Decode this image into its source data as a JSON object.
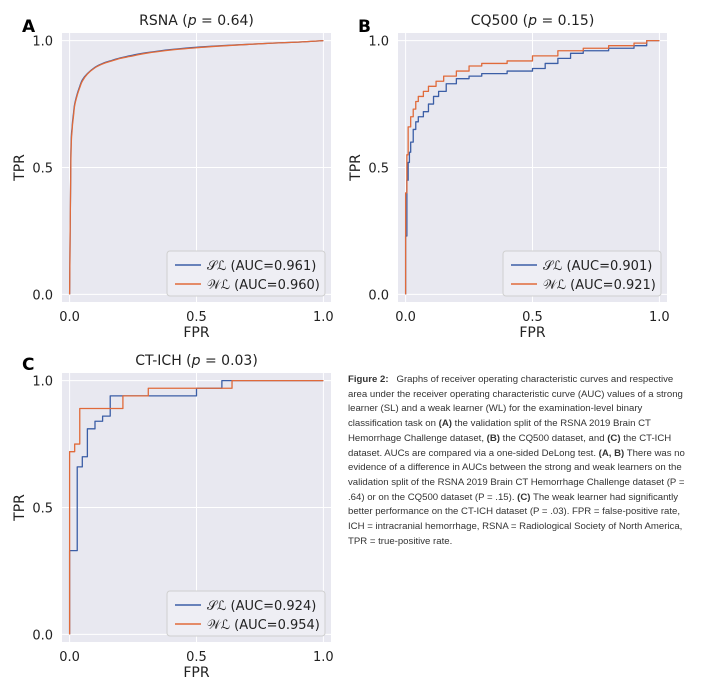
{
  "colors": {
    "sl": "#3b5ea6",
    "wl": "#e06a3a",
    "plot_bg": "#e8e8f0",
    "grid": "#ffffff",
    "text": "#222222"
  },
  "chart_data": [
    {
      "type": "line",
      "panel_letter": "A",
      "title": "RSNA (p = 0.64)",
      "title_name": "RSNA",
      "p_value": "0.64",
      "xlabel": "FPR",
      "ylabel": "TPR",
      "xlim": [
        -0.03,
        1.03
      ],
      "ylim": [
        -0.03,
        1.03
      ],
      "xticks": [
        0.0,
        0.5,
        1.0
      ],
      "xtick_labels": [
        "0.0",
        "0.5",
        "1.0"
      ],
      "yticks": [
        0.0,
        0.5,
        1.0
      ],
      "ytick_labels": [
        "0.0",
        "0.5",
        "1.0"
      ],
      "legend_position": "lower-right",
      "series": [
        {
          "name": "SL",
          "legend_label": "𝒮ℒ (AUC=0.961)",
          "auc": 0.961,
          "style": "smooth",
          "x": [
            0.0,
            0.005,
            0.01,
            0.015,
            0.02,
            0.03,
            0.04,
            0.05,
            0.07,
            0.1,
            0.13,
            0.16,
            0.2,
            0.25,
            0.3,
            0.4,
            0.5,
            0.6,
            0.7,
            0.8,
            0.9,
            0.95,
            1.0
          ],
          "y": [
            0.0,
            0.55,
            0.66,
            0.71,
            0.75,
            0.79,
            0.82,
            0.845,
            0.87,
            0.895,
            0.91,
            0.92,
            0.932,
            0.943,
            0.952,
            0.965,
            0.974,
            0.98,
            0.985,
            0.99,
            0.994,
            0.997,
            1.0
          ]
        },
        {
          "name": "WL",
          "legend_label": "𝒲ℒ (AUC=0.960)",
          "auc": 0.96,
          "style": "smooth",
          "x": [
            0.0,
            0.005,
            0.01,
            0.015,
            0.02,
            0.03,
            0.04,
            0.05,
            0.07,
            0.1,
            0.13,
            0.16,
            0.2,
            0.25,
            0.3,
            0.4,
            0.5,
            0.6,
            0.7,
            0.8,
            0.9,
            0.95,
            1.0
          ],
          "y": [
            0.0,
            0.53,
            0.65,
            0.7,
            0.745,
            0.785,
            0.815,
            0.84,
            0.868,
            0.893,
            0.908,
            0.918,
            0.93,
            0.94,
            0.95,
            0.963,
            0.972,
            0.979,
            0.985,
            0.99,
            0.994,
            0.997,
            1.0
          ]
        }
      ]
    },
    {
      "type": "line",
      "panel_letter": "B",
      "title": "CQ500 (p = 0.15)",
      "title_name": "CQ500",
      "p_value": "0.15",
      "xlabel": "FPR",
      "ylabel": "TPR",
      "xlim": [
        -0.03,
        1.03
      ],
      "ylim": [
        -0.03,
        1.03
      ],
      "xticks": [
        0.0,
        0.5,
        1.0
      ],
      "xtick_labels": [
        "0.0",
        "0.5",
        "1.0"
      ],
      "yticks": [
        0.0,
        0.5,
        1.0
      ],
      "ytick_labels": [
        "0.0",
        "0.5",
        "1.0"
      ],
      "legend_position": "lower-right",
      "series": [
        {
          "name": "SL",
          "legend_label": "𝒮ℒ (AUC=0.901)",
          "auc": 0.901,
          "style": "step",
          "x": [
            0.0,
            0.0,
            0.005,
            0.005,
            0.01,
            0.01,
            0.015,
            0.015,
            0.02,
            0.02,
            0.03,
            0.03,
            0.04,
            0.04,
            0.05,
            0.05,
            0.07,
            0.07,
            0.09,
            0.09,
            0.11,
            0.11,
            0.13,
            0.13,
            0.16,
            0.16,
            0.2,
            0.2,
            0.25,
            0.25,
            0.3,
            0.3,
            0.4,
            0.4,
            0.5,
            0.5,
            0.55,
            0.55,
            0.6,
            0.6,
            0.65,
            0.65,
            0.7,
            0.7,
            0.8,
            0.8,
            0.9,
            0.9,
            0.95,
            0.95,
            1.0
          ],
          "y": [
            0.0,
            0.23,
            0.23,
            0.45,
            0.45,
            0.52,
            0.52,
            0.56,
            0.56,
            0.6,
            0.6,
            0.65,
            0.65,
            0.68,
            0.68,
            0.7,
            0.7,
            0.72,
            0.72,
            0.75,
            0.75,
            0.78,
            0.78,
            0.8,
            0.8,
            0.83,
            0.83,
            0.85,
            0.85,
            0.86,
            0.86,
            0.87,
            0.87,
            0.88,
            0.88,
            0.89,
            0.89,
            0.91,
            0.91,
            0.93,
            0.93,
            0.95,
            0.95,
            0.96,
            0.96,
            0.97,
            0.97,
            0.98,
            0.98,
            1.0,
            1.0
          ]
        },
        {
          "name": "WL",
          "legend_label": "𝒲ℒ (AUC=0.921)",
          "auc": 0.921,
          "style": "step",
          "x": [
            0.0,
            0.0,
            0.005,
            0.005,
            0.01,
            0.01,
            0.02,
            0.02,
            0.03,
            0.03,
            0.04,
            0.04,
            0.05,
            0.05,
            0.07,
            0.07,
            0.09,
            0.09,
            0.12,
            0.12,
            0.15,
            0.15,
            0.2,
            0.2,
            0.25,
            0.25,
            0.3,
            0.3,
            0.4,
            0.4,
            0.5,
            0.5,
            0.6,
            0.6,
            0.7,
            0.7,
            0.8,
            0.8,
            0.9,
            0.9,
            0.95,
            0.95,
            1.0
          ],
          "y": [
            0.0,
            0.4,
            0.4,
            0.55,
            0.55,
            0.66,
            0.66,
            0.7,
            0.7,
            0.73,
            0.73,
            0.76,
            0.76,
            0.78,
            0.78,
            0.8,
            0.8,
            0.82,
            0.82,
            0.84,
            0.84,
            0.86,
            0.86,
            0.88,
            0.88,
            0.9,
            0.9,
            0.91,
            0.91,
            0.92,
            0.92,
            0.94,
            0.94,
            0.96,
            0.96,
            0.97,
            0.97,
            0.98,
            0.98,
            0.99,
            0.99,
            1.0,
            1.0
          ]
        }
      ]
    },
    {
      "type": "line",
      "panel_letter": "C",
      "title": "CT-ICH (p = 0.03)",
      "title_name": "CT-ICH",
      "p_value": "0.03",
      "xlabel": "FPR",
      "ylabel": "TPR",
      "xlim": [
        -0.03,
        1.03
      ],
      "ylim": [
        -0.03,
        1.03
      ],
      "xticks": [
        0.0,
        0.5,
        1.0
      ],
      "xtick_labels": [
        "0.0",
        "0.5",
        "1.0"
      ],
      "yticks": [
        0.0,
        0.5,
        1.0
      ],
      "ytick_labels": [
        "0.0",
        "0.5",
        "1.0"
      ],
      "legend_position": "lower-right",
      "series": [
        {
          "name": "SL",
          "legend_label": "𝒮ℒ (AUC=0.924)",
          "auc": 0.924,
          "style": "step",
          "x": [
            0.0,
            0.0,
            0.03,
            0.03,
            0.05,
            0.05,
            0.07,
            0.07,
            0.1,
            0.1,
            0.13,
            0.13,
            0.16,
            0.16,
            0.26,
            0.26,
            0.5,
            0.5,
            0.6,
            0.6,
            0.64,
            0.64,
            1.0
          ],
          "y": [
            0.0,
            0.33,
            0.33,
            0.66,
            0.66,
            0.7,
            0.7,
            0.81,
            0.81,
            0.84,
            0.84,
            0.86,
            0.86,
            0.94,
            0.94,
            0.94,
            0.94,
            0.97,
            0.97,
            1.0,
            1.0,
            1.0,
            1.0
          ]
        },
        {
          "name": "WL",
          "legend_label": "𝒲ℒ (AUC=0.954)",
          "auc": 0.954,
          "style": "step",
          "x": [
            0.0,
            0.0,
            0.02,
            0.02,
            0.04,
            0.04,
            0.06,
            0.06,
            0.21,
            0.21,
            0.31,
            0.31,
            0.64,
            0.64,
            1.0
          ],
          "y": [
            0.0,
            0.72,
            0.72,
            0.75,
            0.75,
            0.89,
            0.89,
            0.89,
            0.89,
            0.94,
            0.94,
            0.97,
            0.97,
            1.0,
            1.0
          ]
        }
      ]
    }
  ],
  "caption": {
    "label": "Figure 2:",
    "parts": [
      {
        "t": "Graphs of receiver operating characteristic curves and respective area under the receiver operating characteristic curve (AUC) values of a strong learner (SL) and a weak learner (WL) for the examination-level binary classification task on "
      },
      {
        "t": "(A)",
        "b": true
      },
      {
        "t": " the validation split of the RSNA 2019 Brain CT Hemorrhage Challenge dataset, "
      },
      {
        "t": "(B)",
        "b": true
      },
      {
        "t": " the CQ500 dataset, and "
      },
      {
        "t": "(C)",
        "b": true
      },
      {
        "t": " the CT-ICH dataset. AUCs are compared via a one-sided DeLong test. "
      },
      {
        "t": "(A, B)",
        "b": true
      },
      {
        "t": " There was no evidence of a difference in AUCs between the strong and weak learners on the validation split of the RSNA 2019 Brain CT Hemorrhage Challenge dataset (P = .64) or on the CQ500 dataset (P = .15). "
      },
      {
        "t": "(C)",
        "b": true
      },
      {
        "t": " The weak learner had significantly better performance on the CT-ICH dataset (P = .03). FPR = false-positive rate, ICH = intracranial hemorrhage, RSNA = Radiological Society of North America, TPR = true-positive rate."
      }
    ]
  }
}
